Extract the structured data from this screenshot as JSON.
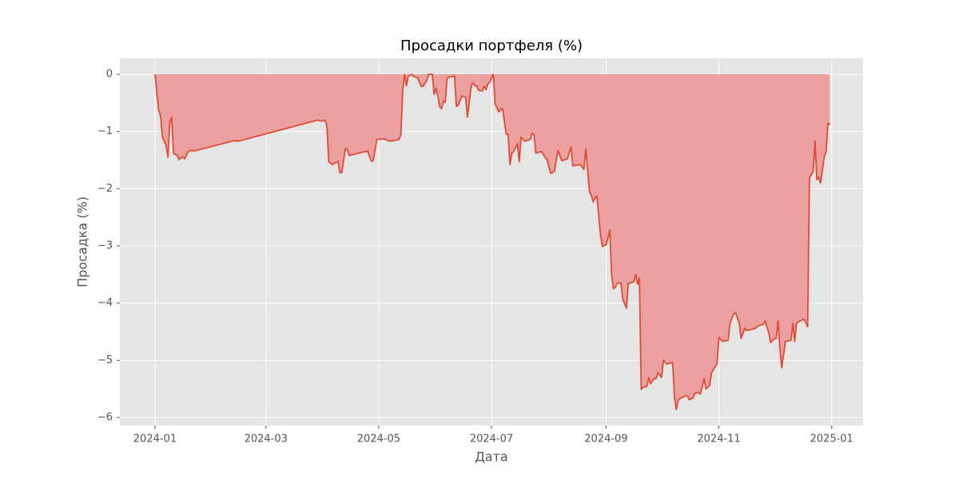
{
  "chart_data": {
    "type": "area",
    "title": "Просадки портфеля (%)",
    "xlabel": "Дата",
    "ylabel": "Просадка (%)",
    "xlim": [
      "2023-12-13",
      "2025-01-18"
    ],
    "xticks": [
      {
        "value": "2024-01-01",
        "label": "2024-01"
      },
      {
        "value": "2024-03-01",
        "label": "2024-03"
      },
      {
        "value": "2024-05-01",
        "label": "2024-05"
      },
      {
        "value": "2024-07-01",
        "label": "2024-07"
      },
      {
        "value": "2024-09-01",
        "label": "2024-09"
      },
      {
        "value": "2024-11-01",
        "label": "2024-11"
      },
      {
        "value": "2025-01-01",
        "label": "2025-01"
      }
    ],
    "ylim": [
      -6.14,
      0.28
    ],
    "yticks": [
      0,
      {
        "value": -1,
        "label": "−1"
      },
      {
        "value": -2,
        "label": "−2"
      },
      {
        "value": -3,
        "label": "−3"
      },
      {
        "value": -4,
        "label": "−4"
      },
      {
        "value": -5,
        "label": "−5"
      },
      {
        "value": -6,
        "label": "−6"
      }
    ],
    "grid": true,
    "x": [
      "2024-01-01",
      "2024-01-03",
      "2024-01-04",
      "2024-01-05",
      "2024-01-07",
      "2024-01-08",
      "2024-01-09",
      "2024-01-10",
      "2024-01-11",
      "2024-01-13",
      "2024-01-14",
      "2024-01-16",
      "2024-01-17",
      "2024-01-19",
      "2024-01-21",
      "2024-01-22",
      "2024-02-13",
      "2024-02-15",
      "2024-03-29",
      "2024-03-31",
      "2024-04-02",
      "2024-04-03",
      "2024-04-04",
      "2024-04-06",
      "2024-04-09",
      "2024-04-10",
      "2024-04-11",
      "2024-04-13",
      "2024-04-14",
      "2024-04-15",
      "2024-04-25",
      "2024-04-27",
      "2024-04-28",
      "2024-04-30",
      "2024-05-03",
      "2024-05-05",
      "2024-05-06",
      "2024-05-07",
      "2024-05-09",
      "2024-05-12",
      "2024-05-13",
      "2024-05-14",
      "2024-05-15",
      "2024-05-16",
      "2024-05-17",
      "2024-05-19",
      "2024-05-20",
      "2024-05-22",
      "2024-05-24",
      "2024-05-25",
      "2024-05-27",
      "2024-05-28",
      "2024-05-30",
      "2024-05-31",
      "2024-06-01",
      "2024-06-02",
      "2024-06-03",
      "2024-06-04",
      "2024-06-05",
      "2024-06-06",
      "2024-06-07",
      "2024-06-09",
      "2024-06-11",
      "2024-06-12",
      "2024-06-13",
      "2024-06-15",
      "2024-06-17",
      "2024-06-18",
      "2024-06-20",
      "2024-06-21",
      "2024-06-22",
      "2024-06-23",
      "2024-06-24",
      "2024-06-26",
      "2024-06-27",
      "2024-06-28",
      "2024-06-29",
      "2024-06-30",
      "2024-07-02",
      "2024-07-03",
      "2024-07-05",
      "2024-07-06",
      "2024-07-07",
      "2024-07-09",
      "2024-07-10",
      "2024-07-11",
      "2024-07-12",
      "2024-07-13",
      "2024-07-15",
      "2024-07-16",
      "2024-07-17",
      "2024-07-19",
      "2024-07-22",
      "2024-07-23",
      "2024-07-24",
      "2024-07-25",
      "2024-07-28",
      "2024-07-30",
      "2024-07-31",
      "2024-08-02",
      "2024-08-04",
      "2024-08-06",
      "2024-08-08",
      "2024-08-11",
      "2024-08-13",
      "2024-08-14",
      "2024-08-18",
      "2024-08-20",
      "2024-08-21",
      "2024-08-23",
      "2024-08-24",
      "2024-08-25",
      "2024-08-26",
      "2024-08-27",
      "2024-08-29",
      "2024-08-30",
      "2024-09-01",
      "2024-09-02",
      "2024-09-03",
      "2024-09-04",
      "2024-09-05",
      "2024-09-06",
      "2024-09-07",
      "2024-09-09",
      "2024-09-10",
      "2024-09-12",
      "2024-09-13",
      "2024-09-16",
      "2024-09-17",
      "2024-09-18",
      "2024-09-19",
      "2024-09-20",
      "2024-09-21",
      "2024-09-23",
      "2024-09-24",
      "2024-09-25",
      "2024-09-27",
      "2024-09-28",
      "2024-09-29",
      "2024-10-01",
      "2024-10-02",
      "2024-10-04",
      "2024-10-05",
      "2024-10-07",
      "2024-10-08",
      "2024-10-09",
      "2024-10-10",
      "2024-10-12",
      "2024-10-14",
      "2024-10-15",
      "2024-10-16",
      "2024-10-18",
      "2024-10-19",
      "2024-10-21",
      "2024-10-22",
      "2024-10-24",
      "2024-10-25",
      "2024-10-27",
      "2024-10-28",
      "2024-10-30",
      "2024-10-31",
      "2024-11-01",
      "2024-11-03",
      "2024-11-06",
      "2024-11-07",
      "2024-11-09",
      "2024-11-10",
      "2024-11-12",
      "2024-11-13",
      "2024-11-15",
      "2024-11-16",
      "2024-11-21",
      "2024-11-22",
      "2024-11-25",
      "2024-11-26",
      "2024-11-28",
      "2024-11-29",
      "2024-12-01",
      "2024-12-02",
      "2024-12-03",
      "2024-12-04",
      "2024-12-05",
      "2024-12-07",
      "2024-12-10",
      "2024-12-11",
      "2024-12-12",
      "2024-12-13",
      "2024-12-15",
      "2024-12-17",
      "2024-12-19",
      "2024-12-20",
      "2024-12-22",
      "2024-12-23",
      "2024-12-24",
      "2024-12-25",
      "2024-12-26",
      "2024-12-28",
      "2024-12-29",
      "2024-12-30",
      "2024-12-31"
    ],
    "series": [
      {
        "color": "#E24A33",
        "fill_color": "#eca0a0",
        "values": [
          0,
          -0.63,
          -0.73,
          -1.1,
          -1.24,
          -1.45,
          -0.84,
          -0.75,
          -1.38,
          -1.42,
          -1.49,
          -1.44,
          -1.48,
          -1.35,
          -1.33,
          -1.34,
          -1.16,
          -1.17,
          -0.8,
          -0.82,
          -0.8,
          -0.91,
          -1.53,
          -1.58,
          -1.52,
          -1.72,
          -1.72,
          -1.3,
          -1.31,
          -1.42,
          -1.34,
          -1.52,
          -1.51,
          -1.14,
          -1.13,
          -1.14,
          -1.16,
          -1.17,
          -1.16,
          -1.14,
          -1.05,
          -0.27,
          0,
          -0.2,
          -0.03,
          0,
          -0.04,
          -0.06,
          -0.21,
          -0.21,
          -0.11,
          0,
          0,
          -0.35,
          -0.24,
          -0.38,
          -0.57,
          -0.6,
          -0.47,
          -0.49,
          -0.07,
          -0.04,
          -0.03,
          -0.56,
          -0.54,
          -0.38,
          -0.4,
          -0.75,
          -0.21,
          -0.15,
          -0.2,
          -0.2,
          -0.28,
          -0.29,
          -0.21,
          -0.27,
          -0.17,
          -0.14,
          0,
          -0.52,
          -0.66,
          -0.61,
          -0.6,
          -1.05,
          -1.05,
          -1.58,
          -1.38,
          -1.35,
          -1.21,
          -1.53,
          -1.1,
          -1.17,
          -1.14,
          -1.03,
          -1.05,
          -1.38,
          -1.35,
          -1.45,
          -1.49,
          -1.73,
          -1.7,
          -1.33,
          -1.51,
          -1.48,
          -1.27,
          -1.6,
          -1.58,
          -1.66,
          -1.31,
          -2.05,
          -2.12,
          -2.23,
          -2.16,
          -2.13,
          -2.82,
          -3.01,
          -2.98,
          -2.86,
          -2.72,
          -3.52,
          -3.75,
          -3.72,
          -3.65,
          -3.65,
          -3.93,
          -4.09,
          -3.66,
          -3.63,
          -3.5,
          -3.67,
          -3.56,
          -5.51,
          -5.47,
          -5.46,
          -5.3,
          -5.41,
          -5.32,
          -5.32,
          -5.22,
          -5.3,
          -5.0,
          -5.07,
          -5.05,
          -5.04,
          -5.66,
          -5.86,
          -5.69,
          -5.65,
          -5.62,
          -5.62,
          -5.69,
          -5.66,
          -5.58,
          -5.56,
          -5.59,
          -5.32,
          -5.5,
          -5.44,
          -5.22,
          -5.11,
          -5.06,
          -4.6,
          -4.67,
          -4.65,
          -4.35,
          -4.19,
          -4.17,
          -4.35,
          -4.62,
          -4.44,
          -4.48,
          -4.44,
          -4.4,
          -4.37,
          -4.31,
          -4.52,
          -4.69,
          -4.62,
          -4.62,
          -4.31,
          -4.8,
          -5.13,
          -4.67,
          -4.65,
          -4.35,
          -4.67,
          -4.35,
          -4.31,
          -4.28,
          -4.41,
          -1.81,
          -1.7,
          -1.17,
          -1.84,
          -1.8,
          -1.9,
          -1.44,
          -1.35,
          -0.85,
          -0.88
        ]
      }
    ]
  }
}
